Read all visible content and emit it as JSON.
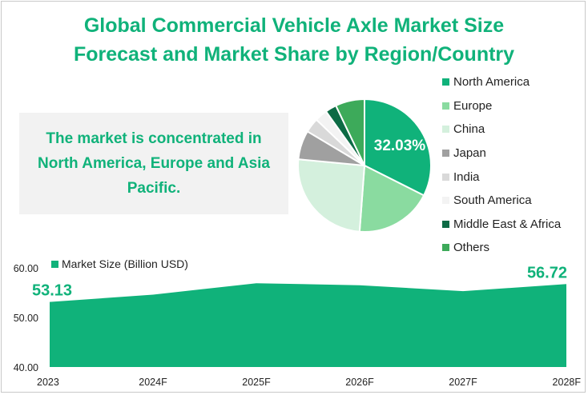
{
  "title_line1": "Global Commercial Vehicle Axle Market Size",
  "title_line2": "Forecast and Market Share by Region/Country",
  "callout_text": "The market is concentrated in North America, Europe and Asia Pacific.",
  "chart_data": [
    {
      "type": "pie",
      "title": "",
      "slices": [
        {
          "label": "North America",
          "value": 32.03,
          "color": "#10b27a"
        },
        {
          "label": "Europe",
          "value": 18.5,
          "color": "#8adba0"
        },
        {
          "label": "China",
          "value": 25.0,
          "color": "#d4f0dd"
        },
        {
          "label": "Japan",
          "value": 7.0,
          "color": "#a0a0a0"
        },
        {
          "label": "India",
          "value": 3.5,
          "color": "#d9d9d9"
        },
        {
          "label": "South America",
          "value": 3.0,
          "color": "#f3f3f3"
        },
        {
          "label": "Middle East & Africa",
          "value": 2.7,
          "color": "#0d6b45"
        },
        {
          "label": "Others",
          "value": 7.0,
          "color": "#3daa5a"
        }
      ],
      "data_label": "32.03%",
      "legend_position": "right"
    },
    {
      "type": "area",
      "title": "",
      "series": [
        {
          "name": "Market Size (Billion USD)",
          "color": "#10b27a",
          "values": [
            53.13,
            54.6,
            56.9,
            56.5,
            55.3,
            56.72
          ]
        }
      ],
      "categories": [
        "2023",
        "2024F",
        "2025F",
        "2026F",
        "2027F",
        "2028F"
      ],
      "ylim": [
        40,
        60
      ],
      "yticks": [
        "40.00",
        "50.00",
        "60.00"
      ],
      "data_labels": [
        {
          "index": 0,
          "text": "53.13"
        },
        {
          "index": 5,
          "text": "56.72"
        }
      ],
      "grid": false,
      "legend_position": "top-left"
    }
  ]
}
